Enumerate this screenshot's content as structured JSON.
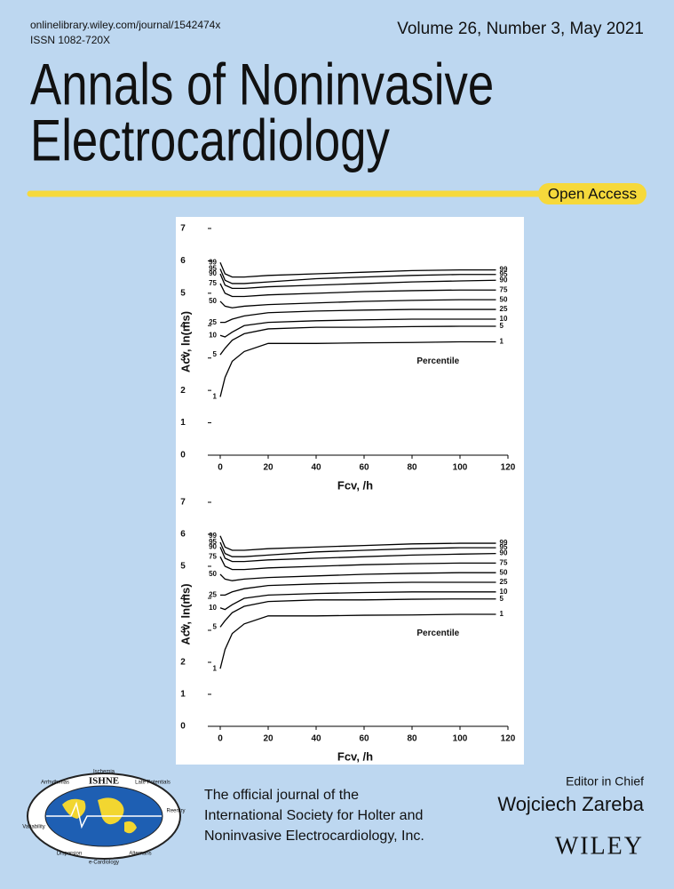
{
  "header": {
    "url": "onlinelibrary.wiley.com/journal/1542474x",
    "issn": "ISSN  1082-720X",
    "issue": "Volume 26, Number 3, May 2021",
    "title_lines": [
      "Annals of Noninvasive",
      "Electrocardiology"
    ],
    "badge": "Open Access"
  },
  "chart_data": [
    {
      "type": "line",
      "ylabel": "Acv, ln(ms)",
      "xlabel": "Fcv, /h",
      "annotation": "Percentile",
      "line_color": "#000000",
      "xlim": [
        0,
        120
      ],
      "xticks": [
        0,
        20,
        40,
        60,
        80,
        100,
        120
      ],
      "ylim": [
        0,
        7
      ],
      "yticks": [
        0,
        1,
        2,
        3,
        4,
        5,
        6,
        7
      ],
      "x": [
        0,
        2,
        5,
        10,
        20,
        40,
        60,
        80,
        100,
        115
      ],
      "series": [
        {
          "name": "99",
          "values": [
            5.95,
            5.6,
            5.5,
            5.5,
            5.55,
            5.6,
            5.65,
            5.7,
            5.72,
            5.72
          ]
        },
        {
          "name": "95",
          "values": [
            5.75,
            5.4,
            5.3,
            5.3,
            5.35,
            5.45,
            5.5,
            5.55,
            5.58,
            5.58
          ]
        },
        {
          "name": "90",
          "values": [
            5.6,
            5.25,
            5.15,
            5.15,
            5.2,
            5.25,
            5.3,
            5.35,
            5.38,
            5.4
          ]
        },
        {
          "name": "75",
          "values": [
            5.3,
            5.0,
            4.9,
            4.9,
            4.95,
            5.0,
            5.05,
            5.08,
            5.1,
            5.1
          ]
        },
        {
          "name": "50",
          "values": [
            4.75,
            4.6,
            4.55,
            4.6,
            4.65,
            4.7,
            4.75,
            4.78,
            4.8,
            4.8
          ]
        },
        {
          "name": "25",
          "values": [
            4.1,
            4.1,
            4.2,
            4.3,
            4.4,
            4.45,
            4.48,
            4.5,
            4.5,
            4.5
          ]
        },
        {
          "name": "10",
          "values": [
            3.7,
            3.65,
            3.8,
            4.0,
            4.1,
            4.15,
            4.18,
            4.2,
            4.2,
            4.2
          ]
        },
        {
          "name": "5",
          "values": [
            3.1,
            3.3,
            3.55,
            3.75,
            3.9,
            3.95,
            3.95,
            3.97,
            3.98,
            3.98
          ]
        },
        {
          "name": "1",
          "values": [
            1.8,
            2.4,
            2.9,
            3.2,
            3.45,
            3.45,
            3.47,
            3.48,
            3.5,
            3.5
          ]
        }
      ]
    },
    {
      "type": "line",
      "ylabel": "Acv, ln(ms)",
      "xlabel": "Fcv, /h",
      "annotation": "Percentile",
      "line_color": "#000000",
      "xlim": [
        0,
        120
      ],
      "xticks": [
        0,
        20,
        40,
        60,
        80,
        100,
        120
      ],
      "ylim": [
        0,
        7
      ],
      "yticks": [
        0,
        1,
        2,
        3,
        4,
        5,
        6,
        7
      ],
      "x": [
        0,
        2,
        5,
        10,
        20,
        40,
        60,
        80,
        100,
        115
      ],
      "series": [
        {
          "name": "99",
          "values": [
            5.95,
            5.6,
            5.5,
            5.5,
            5.55,
            5.6,
            5.65,
            5.7,
            5.72,
            5.72
          ]
        },
        {
          "name": "95",
          "values": [
            5.75,
            5.4,
            5.3,
            5.3,
            5.35,
            5.45,
            5.5,
            5.55,
            5.58,
            5.58
          ]
        },
        {
          "name": "90",
          "values": [
            5.6,
            5.25,
            5.15,
            5.15,
            5.2,
            5.25,
            5.3,
            5.35,
            5.38,
            5.4
          ]
        },
        {
          "name": "75",
          "values": [
            5.3,
            5.0,
            4.9,
            4.9,
            4.95,
            5.0,
            5.05,
            5.08,
            5.1,
            5.1
          ]
        },
        {
          "name": "50",
          "values": [
            4.75,
            4.6,
            4.55,
            4.6,
            4.65,
            4.7,
            4.75,
            4.78,
            4.8,
            4.8
          ]
        },
        {
          "name": "25",
          "values": [
            4.1,
            4.1,
            4.2,
            4.3,
            4.4,
            4.45,
            4.48,
            4.5,
            4.5,
            4.5
          ]
        },
        {
          "name": "10",
          "values": [
            3.7,
            3.65,
            3.8,
            4.0,
            4.1,
            4.15,
            4.18,
            4.2,
            4.2,
            4.2
          ]
        },
        {
          "name": "5",
          "values": [
            3.1,
            3.3,
            3.55,
            3.75,
            3.9,
            3.95,
            3.95,
            3.97,
            3.98,
            3.98
          ]
        },
        {
          "name": "1",
          "values": [
            1.8,
            2.4,
            2.9,
            3.2,
            3.45,
            3.45,
            3.47,
            3.48,
            3.5,
            3.5
          ]
        }
      ]
    }
  ],
  "footer": {
    "logo": "ISHNE",
    "logo_words": [
      "Arrhythmias",
      "Ischemia",
      "Late Potentials",
      "Variability",
      "Dispersion",
      "e-Cardiology",
      "Alternans",
      "Reentry"
    ],
    "society_lines": [
      "The official journal of the",
      "International Society for Holter and",
      "Noninvasive Electrocardiology, Inc."
    ],
    "editor_role": "Editor in Chief",
    "editor_name": "Wojciech Zareba",
    "publisher": "WILEY"
  }
}
